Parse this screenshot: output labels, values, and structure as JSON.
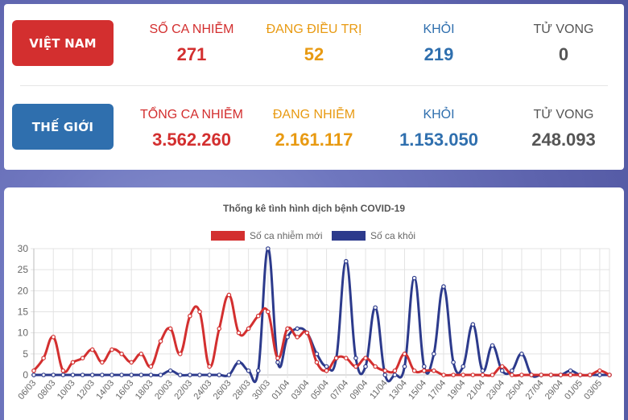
{
  "vietnam": {
    "region_label": "VIỆT NAM",
    "stats": [
      {
        "label": "SỐ CA NHIỄM",
        "value": "271",
        "color": "#d32f2f"
      },
      {
        "label": "ĐANG ĐIỀU TRỊ",
        "value": "52",
        "color": "#e89a12"
      },
      {
        "label": "KHỎI",
        "value": "219",
        "color": "#2f6fae"
      },
      {
        "label": "TỬ VONG",
        "value": "0",
        "color": "#555555"
      }
    ]
  },
  "world": {
    "region_label": "THẾ GIỚI",
    "stats": [
      {
        "label": "TỔNG CA NHIỄM",
        "value": "3.562.260",
        "color": "#d32f2f"
      },
      {
        "label": "ĐANG NHIỄM",
        "value": "2.161.117",
        "color": "#e89a12"
      },
      {
        "label": "KHỎI",
        "value": "1.153.050",
        "color": "#2f6fae"
      },
      {
        "label": "TỬ VONG",
        "value": "248.093",
        "color": "#555555"
      }
    ]
  },
  "chart_data": {
    "type": "line",
    "title": "Thống kê tình hình dịch bệnh COVID-19",
    "legend_position": "top",
    "grid": true,
    "ylim": [
      0,
      30
    ],
    "y_ticks": [
      0,
      5,
      10,
      15,
      20,
      25,
      30
    ],
    "x_tick_labels": [
      "06/03",
      "08/03",
      "10/03",
      "12/03",
      "14/03",
      "16/03",
      "18/03",
      "20/03",
      "22/03",
      "24/03",
      "26/03",
      "28/03",
      "30/03",
      "01/04",
      "03/04",
      "05/04",
      "07/04",
      "09/04",
      "11/04",
      "13/04",
      "15/04",
      "17/04",
      "19/04",
      "21/04",
      "23/04",
      "25/04",
      "27/04",
      "29/04",
      "01/05",
      "03/05"
    ],
    "x": [
      "06/03",
      "07/03",
      "08/03",
      "09/03",
      "10/03",
      "11/03",
      "12/03",
      "13/03",
      "14/03",
      "15/03",
      "16/03",
      "17/03",
      "18/03",
      "19/03",
      "20/03",
      "21/03",
      "22/03",
      "23/03",
      "24/03",
      "25/03",
      "26/03",
      "27/03",
      "28/03",
      "29/03",
      "30/03",
      "31/03",
      "01/04",
      "02/04",
      "03/04",
      "04/04",
      "05/04",
      "06/04",
      "07/04",
      "08/04",
      "09/04",
      "10/04",
      "11/04",
      "12/04",
      "13/04",
      "14/04",
      "15/04",
      "16/04",
      "17/04",
      "18/04",
      "19/04",
      "20/04",
      "21/04",
      "22/04",
      "23/04",
      "24/04",
      "25/04",
      "26/04",
      "27/04",
      "28/04",
      "29/04",
      "30/04",
      "01/05",
      "02/05",
      "03/05",
      "04/05"
    ],
    "series": [
      {
        "name": "Số ca nhiễm mới",
        "color": "#d32f2f",
        "values": [
          1,
          4,
          9,
          1,
          3,
          4,
          6,
          3,
          6,
          5,
          3,
          5,
          2,
          8,
          11,
          5,
          14,
          15,
          2,
          11,
          19,
          10,
          11,
          14,
          15,
          4,
          11,
          9,
          10,
          3,
          1,
          4,
          4,
          2,
          4,
          2,
          1,
          1,
          5,
          1,
          1,
          1,
          0,
          0,
          0,
          0,
          0,
          0,
          2,
          0,
          0,
          0,
          0,
          0,
          0,
          0,
          0,
          0,
          1,
          0
        ]
      },
      {
        "name": "Số ca khỏi",
        "color": "#2c3a8c",
        "values": [
          0,
          0,
          0,
          0,
          0,
          0,
          0,
          0,
          0,
          0,
          0,
          0,
          0,
          0,
          1,
          0,
          0,
          0,
          0,
          0,
          0,
          3,
          1,
          1,
          30,
          3,
          9,
          11,
          10,
          5,
          2,
          4,
          27,
          4,
          2,
          16,
          0,
          0,
          2,
          23,
          2,
          5,
          21,
          3,
          2,
          12,
          1,
          7,
          1,
          1,
          5,
          0,
          0,
          0,
          0,
          1,
          0,
          0,
          0,
          0
        ]
      }
    ]
  }
}
